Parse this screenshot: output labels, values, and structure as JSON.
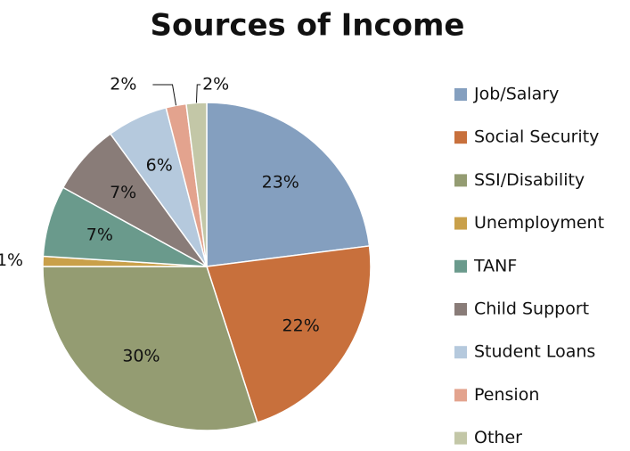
{
  "chart_data": {
    "type": "pie",
    "title": "Sources of Income",
    "categories": [
      "Job/Salary",
      "Social Security",
      "SSI/Disability",
      "Unemployment",
      "TANF",
      "Child Support",
      "Student Loans",
      "Pension",
      "Other"
    ],
    "values": [
      23,
      22,
      30,
      1,
      7,
      7,
      6,
      2,
      2
    ],
    "value_labels": [
      "23%",
      "22%",
      "30%",
      "1%",
      "7%",
      "7%",
      "6%",
      "2%",
      "2%"
    ],
    "colors": [
      "#849fbf",
      "#c8703c",
      "#949c72",
      "#c9a04a",
      "#6a9a8c",
      "#897c78",
      "#b5c9dd",
      "#e3a38e",
      "#c3c7a7"
    ],
    "legend": "right"
  }
}
